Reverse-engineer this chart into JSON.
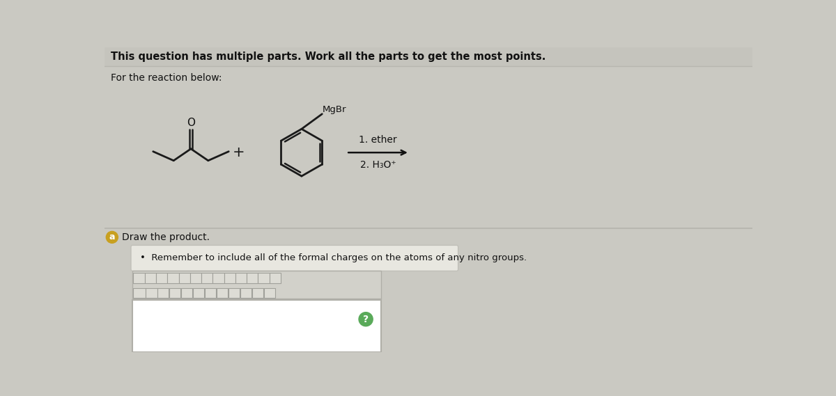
{
  "bg_color": "#cac9c2",
  "header_bg": "#c5c4bd",
  "header_text": "This question has multiple parts. Work all the parts to get the most points.",
  "subheader_text": "For the reaction below:",
  "reaction_conditions_line1": "1. ether",
  "reaction_conditions_line2": "2. H₃O⁺",
  "part_text": "Draw the product.",
  "hint_text": "Remember to include all of the formal charges on the atoms of any nitro groups.",
  "separator_color": "#b8b7b0",
  "hint_box_color": "#e8e7e0",
  "hint_border_color": "#c0bfb8",
  "toolbar_bg": "#d2d1ca",
  "toolbar_border": "#b0afa8",
  "canvas_bg": "#f5f5f2",
  "question_circle_color": "#5aaa5a",
  "part_circle_color": "#c8a020"
}
